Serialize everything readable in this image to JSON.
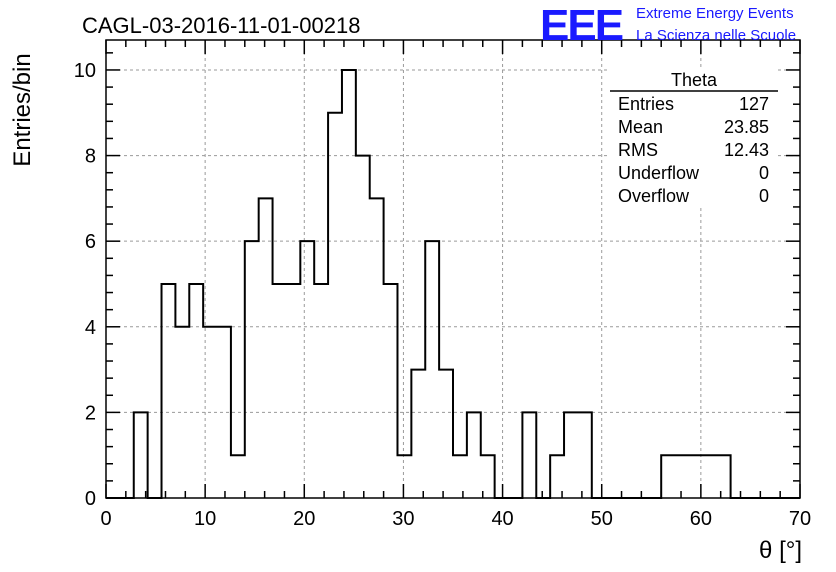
{
  "header": {
    "title": "CAGL-03-2016-11-01-00218",
    "logo_mark": "EEE",
    "logo_line1": "Extreme Energy Events",
    "logo_line2": "La Scienza nelle Scuole",
    "logo_color": "#1a1aff"
  },
  "stats_box": {
    "title": "Theta",
    "rows": [
      {
        "label": "Entries",
        "value": "127"
      },
      {
        "label": "Mean",
        "value": "23.85"
      },
      {
        "label": "RMS",
        "value": "12.43"
      },
      {
        "label": "Underflow",
        "value": "0"
      },
      {
        "label": "Overflow",
        "value": "0"
      }
    ]
  },
  "chart_data": {
    "type": "histogram",
    "xlabel": "θ [°]",
    "ylabel": "Entries/bin",
    "xlim": [
      0,
      70
    ],
    "ylim": [
      0,
      10.7
    ],
    "grid": true,
    "x_ticks": [
      0,
      10,
      20,
      30,
      40,
      50,
      60,
      70
    ],
    "y_ticks": [
      0,
      2,
      4,
      6,
      8,
      10
    ],
    "bin_width": 1.4,
    "bin_edges_start": 0,
    "values": [
      0,
      0,
      2,
      0,
      5,
      4,
      5,
      4,
      4,
      1,
      6,
      7,
      5,
      5,
      6,
      5,
      9,
      10,
      8,
      7,
      5,
      1,
      3,
      6,
      3,
      1,
      2,
      1,
      0,
      0,
      2,
      0,
      1,
      2,
      2,
      0,
      0,
      0,
      0,
      0,
      1,
      1,
      1,
      1,
      1,
      0,
      0,
      0,
      0,
      0
    ]
  }
}
